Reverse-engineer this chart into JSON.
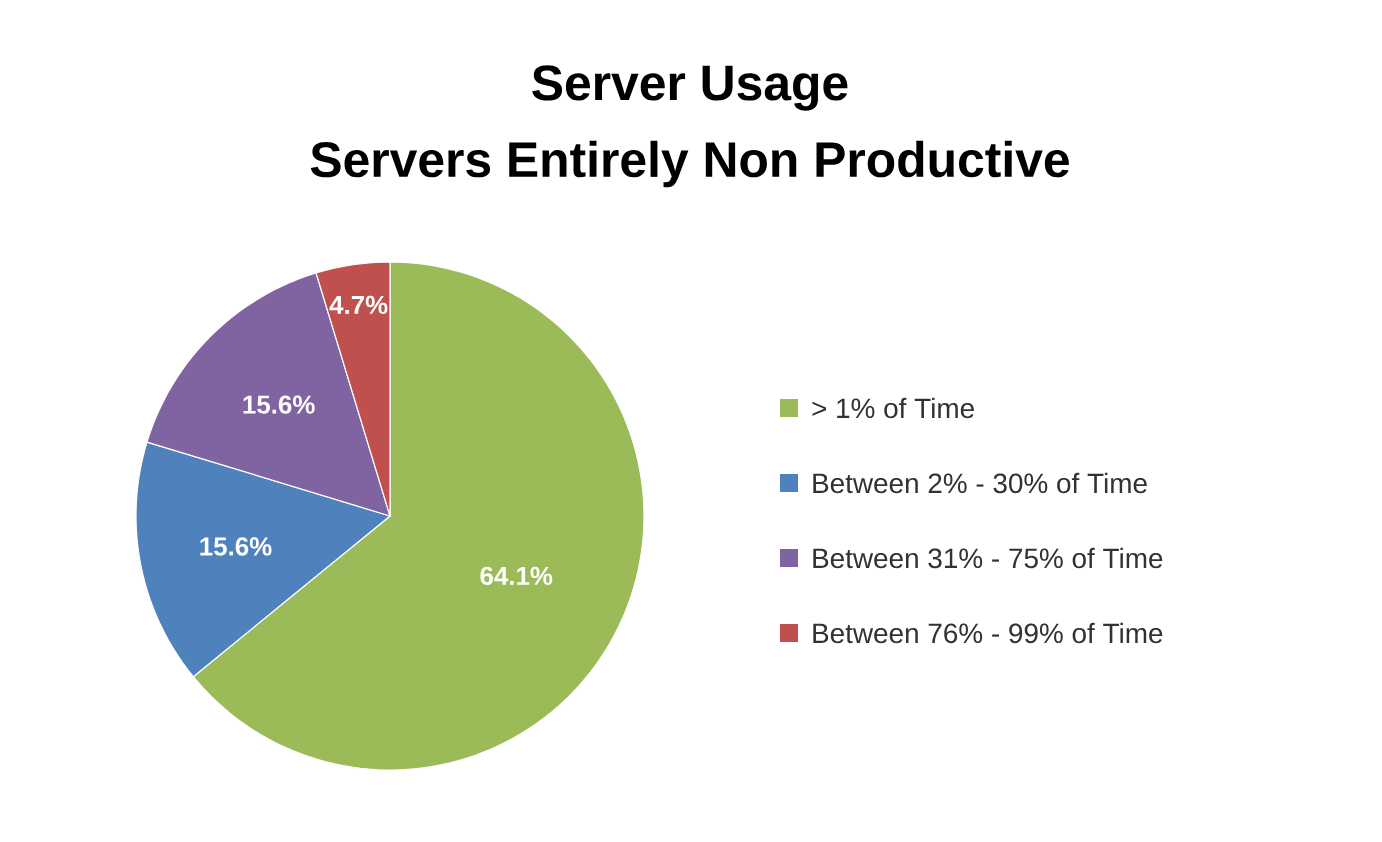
{
  "chart_data": {
    "type": "pie",
    "title": "Server Usage",
    "subtitle": "Servers Entirely Non Productive",
    "categories": [
      "> 1% of Time",
      "Between 2% - 30% of Time",
      "Between 31% - 75% of Time",
      "Between 76% - 99% of Time"
    ],
    "values": [
      64.1,
      15.6,
      15.6,
      4.7
    ],
    "value_labels": [
      "64.1%",
      "15.6%",
      "15.6%",
      "4.7%"
    ],
    "colors": [
      "#9bbb59",
      "#4f81bd",
      "#8064a2",
      "#c0504d"
    ],
    "legend": "right"
  }
}
